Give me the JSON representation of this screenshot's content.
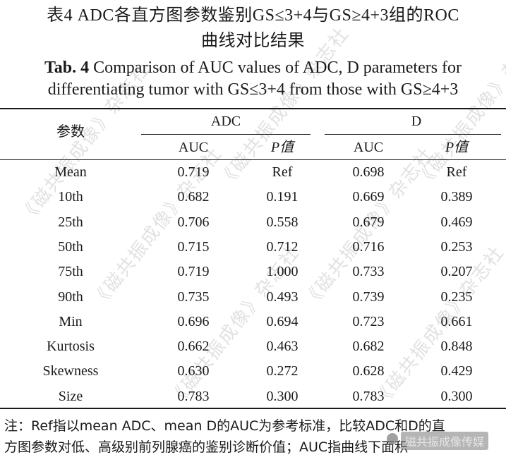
{
  "title_cn_line1": "表4  ADC各直方图参数鉴别GS≤3+4与GS≥4+3组的ROC",
  "title_cn_line2": "曲线对比结果",
  "title_en_prefix": "Tab. 4",
  "title_en_line1_rest": " Comparison of AUC values of ADC, D parameters for",
  "title_en_line2": "differentiating tumor with GS≤3+4 from those with GS≥4+3",
  "table": {
    "param_header": "参数",
    "group_adc": "ADC",
    "group_d": "D",
    "sub_auc": "AUC",
    "sub_p": "P值",
    "rows": [
      {
        "param": "Mean",
        "adc_auc": "0.719",
        "adc_p": "Ref",
        "d_auc": "0.698",
        "d_p": "Ref"
      },
      {
        "param": "10th",
        "adc_auc": "0.682",
        "adc_p": "0.191",
        "d_auc": "0.669",
        "d_p": "0.389"
      },
      {
        "param": "25th",
        "adc_auc": "0.706",
        "adc_p": "0.558",
        "d_auc": "0.679",
        "d_p": "0.469"
      },
      {
        "param": "50th",
        "adc_auc": "0.715",
        "adc_p": "0.712",
        "d_auc": "0.716",
        "d_p": "0.253"
      },
      {
        "param": "75th",
        "adc_auc": "0.719",
        "adc_p": "1.000",
        "d_auc": "0.733",
        "d_p": "0.207"
      },
      {
        "param": "90th",
        "adc_auc": "0.735",
        "adc_p": "0.493",
        "d_auc": "0.739",
        "d_p": "0.235"
      },
      {
        "param": "Min",
        "adc_auc": "0.696",
        "adc_p": "0.694",
        "d_auc": "0.723",
        "d_p": "0.661"
      },
      {
        "param": "Kurtosis",
        "adc_auc": "0.662",
        "adc_p": "0.463",
        "d_auc": "0.682",
        "d_p": "0.848"
      },
      {
        "param": "Skewness",
        "adc_auc": "0.630",
        "adc_p": "0.272",
        "d_auc": "0.628",
        "d_p": "0.429"
      },
      {
        "param": "Size",
        "adc_auc": "0.783",
        "adc_p": "0.300",
        "d_auc": "0.783",
        "d_p": "0.300"
      }
    ]
  },
  "note_line1": "注：Ref指以mean ADC、mean D的AUC为参考标准，比较ADC和D的直",
  "note_line2": "方图参数对低、高级别前列腺癌的鉴别诊断价值；AUC指曲线下面积",
  "watermark_text": "《磁共振成像》杂志社",
  "brand_label": "磁共振成像传媒"
}
